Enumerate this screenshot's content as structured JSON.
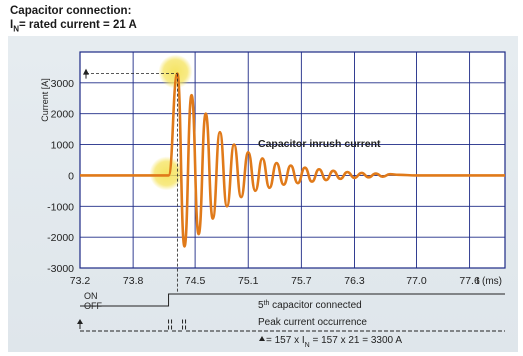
{
  "header": {
    "line1": "Capacitor connection:",
    "line2_prefix": "I",
    "line2_sub": "N",
    "line2_suffix": "= rated current = 21 A"
  },
  "chart_data": {
    "type": "line",
    "title": "Capacitor connection: I_N = rated current = 21 A",
    "ylabel": "Current [A]",
    "xlabel": "t (ms)",
    "ylim": [
      -3000,
      4000
    ],
    "xlim": [
      73.2,
      78.0
    ],
    "yticks": [
      -3000,
      -2000,
      -1000,
      0,
      1000,
      2000,
      3000
    ],
    "xtick_labels": [
      "73.2",
      "73.8",
      "74.5",
      "75.1",
      "75.7",
      "76.3",
      "77.0",
      "77.6"
    ],
    "xtick_values": [
      73.2,
      73.8,
      74.5,
      75.1,
      75.7,
      76.3,
      77.0,
      77.6
    ],
    "grid": true,
    "annotation": "Capacitor inrush current",
    "peak": {
      "t": 74.3,
      "value": 3300
    },
    "series": [
      {
        "name": "",
        "color": "#e07a1a",
        "x": [
          73.2,
          74.2,
          74.3,
          74.38,
          74.46,
          74.54,
          74.62,
          74.7,
          74.78,
          74.86,
          74.94,
          75.02,
          75.1,
          75.18,
          75.26,
          75.34,
          75.42,
          75.5,
          75.58,
          75.66,
          75.74,
          75.82,
          75.9,
          75.98,
          76.06,
          76.14,
          76.22,
          76.3,
          76.38,
          76.46,
          76.54,
          76.62,
          76.7,
          76.8,
          77.0,
          77.4,
          78.0
        ],
        "values": [
          0,
          0,
          3300,
          -2300,
          2600,
          -1900,
          2000,
          -1400,
          1400,
          -1000,
          1000,
          -700,
          750,
          -500,
          550,
          -400,
          400,
          -300,
          320,
          -250,
          250,
          -200,
          200,
          -150,
          150,
          -110,
          110,
          -80,
          80,
          -60,
          60,
          -40,
          40,
          20,
          0,
          0,
          0
        ]
      }
    ],
    "highlights": [
      {
        "t": 74.3,
        "value": 3300,
        "color": "#f2df5a"
      },
      {
        "t": 74.2,
        "value": 0,
        "color": "#f2df5a"
      }
    ]
  },
  "timing": {
    "on_label": "ON",
    "off_label": "OFF",
    "switch_t": 74.2,
    "event1": "capacitor connected",
    "event1_prefix": "5",
    "event1_sup": "th",
    "event2": "Peak current occurrence",
    "event3": "= 157 x I",
    "event3_sub": "N",
    "event3_suffix": " = 157 x 21 = 3300 A"
  }
}
